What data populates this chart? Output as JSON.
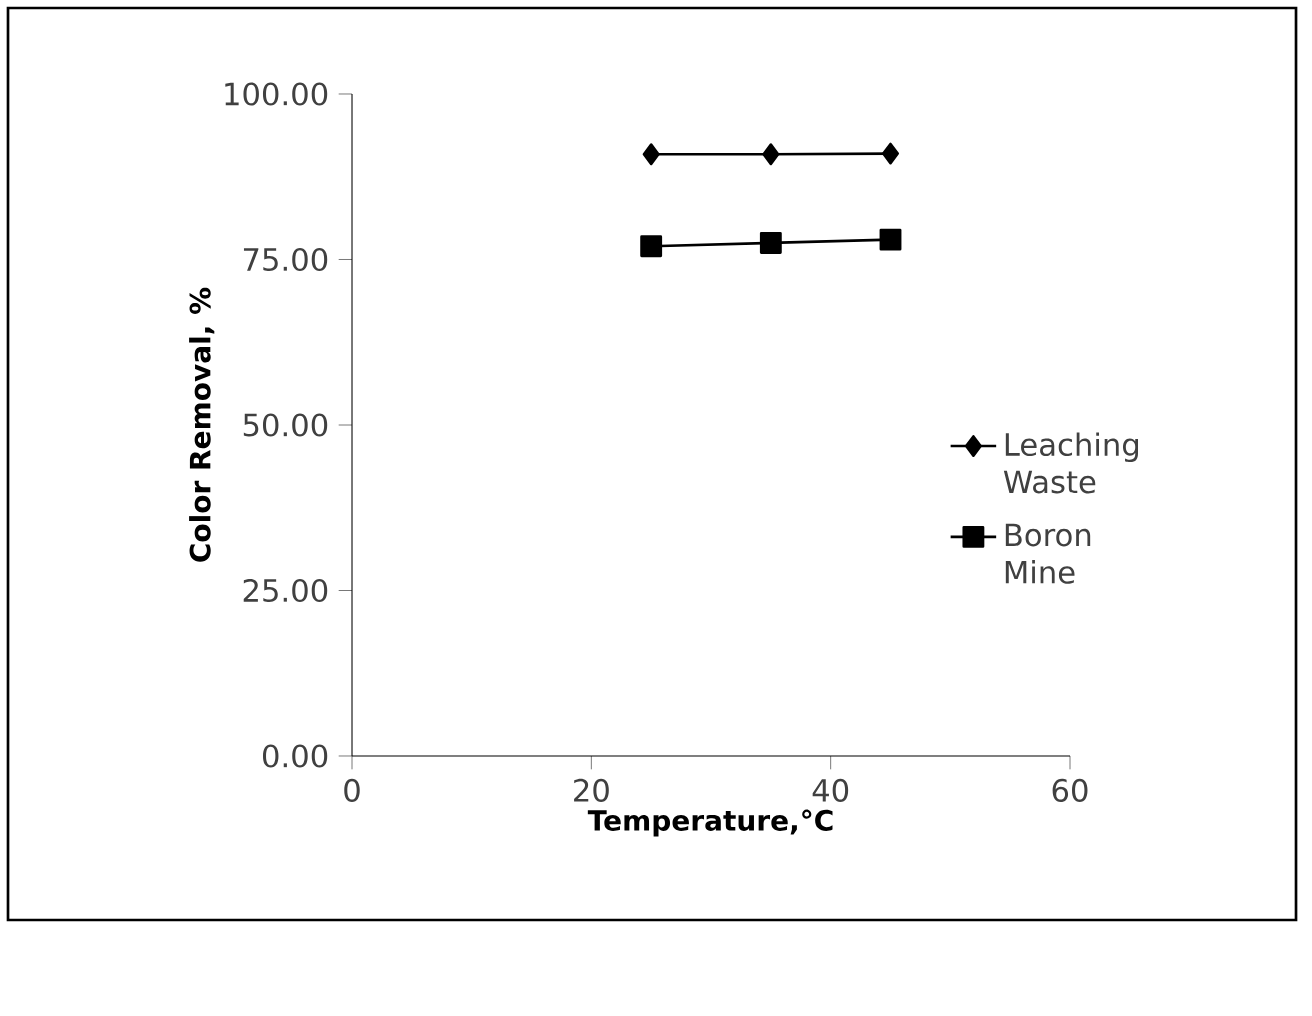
{
  "chart_data": {
    "type": "line",
    "xlabel": "Temperature,°C",
    "ylabel": "Color Removal, %",
    "x": [
      25,
      35,
      45
    ],
    "series": [
      {
        "name": "Leaching Waste",
        "color": "#000000",
        "marker": "diamond",
        "values": [
          90.9,
          90.9,
          91.0
        ]
      },
      {
        "name": "Boron Mine",
        "color": "#000000",
        "marker": "square",
        "values": [
          77.0,
          77.5,
          78.0
        ]
      }
    ],
    "xlim": [
      0,
      60
    ],
    "xticks": [
      0,
      20,
      40,
      60
    ],
    "ylim": [
      0,
      100
    ],
    "yticks": [
      {
        "value": 0,
        "label": "0.00"
      },
      {
        "value": 25,
        "label": "25.00"
      },
      {
        "value": 50,
        "label": "50.00"
      },
      {
        "value": 75,
        "label": "75.00"
      },
      {
        "value": 100,
        "label": "100.00"
      }
    ],
    "grid": false,
    "legend": "right",
    "line_style": "solid"
  }
}
